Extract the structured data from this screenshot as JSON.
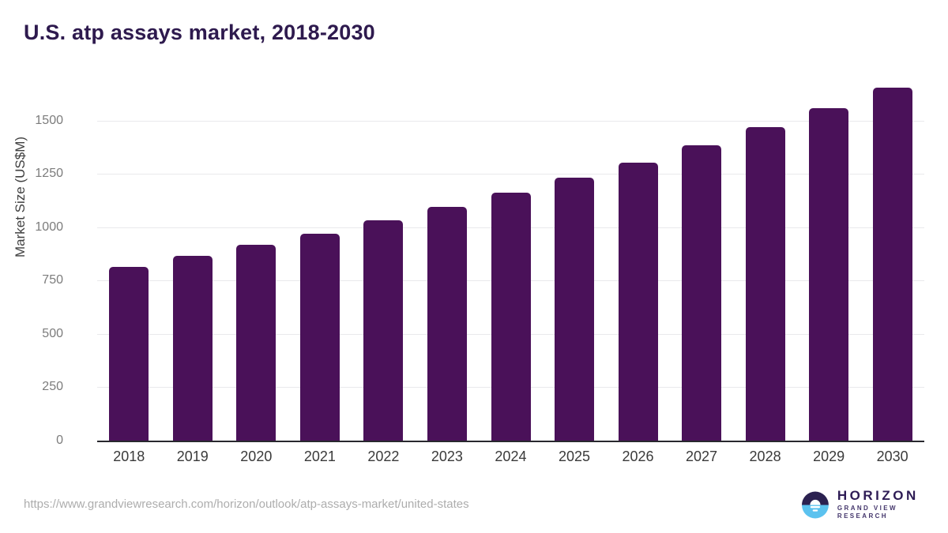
{
  "page": {
    "title": "U.S. atp assays market, 2018-2030",
    "source_url": "https://www.grandviewresearch.com/horizon/outlook/atp-assays-market/united-states"
  },
  "logo": {
    "name": "HORIZON",
    "subtitle": "GRAND VIEW RESEARCH",
    "mark_colors": {
      "top": "#2b2150",
      "bottom": "#5bc2ef",
      "glyph": "#ffffff"
    }
  },
  "chart_data": {
    "type": "bar",
    "title": "U.S. atp assays market, 2018-2030",
    "categories": [
      "2018",
      "2019",
      "2020",
      "2021",
      "2022",
      "2023",
      "2024",
      "2025",
      "2026",
      "2027",
      "2028",
      "2029",
      "2030"
    ],
    "values": [
      815,
      867,
      918,
      970,
      1033,
      1096,
      1163,
      1233,
      1304,
      1385,
      1470,
      1559,
      1656
    ],
    "xlabel": "",
    "ylabel": "Market Size (US$M)",
    "ylim": [
      0,
      1714
    ],
    "yticks": [
      0,
      250,
      500,
      750,
      1000,
      1250,
      1500
    ],
    "grid": true,
    "legend_position": "none",
    "bar_color": "#4a1159",
    "gridline_color": "#e9e9ec",
    "axis_color": "#28282e"
  }
}
